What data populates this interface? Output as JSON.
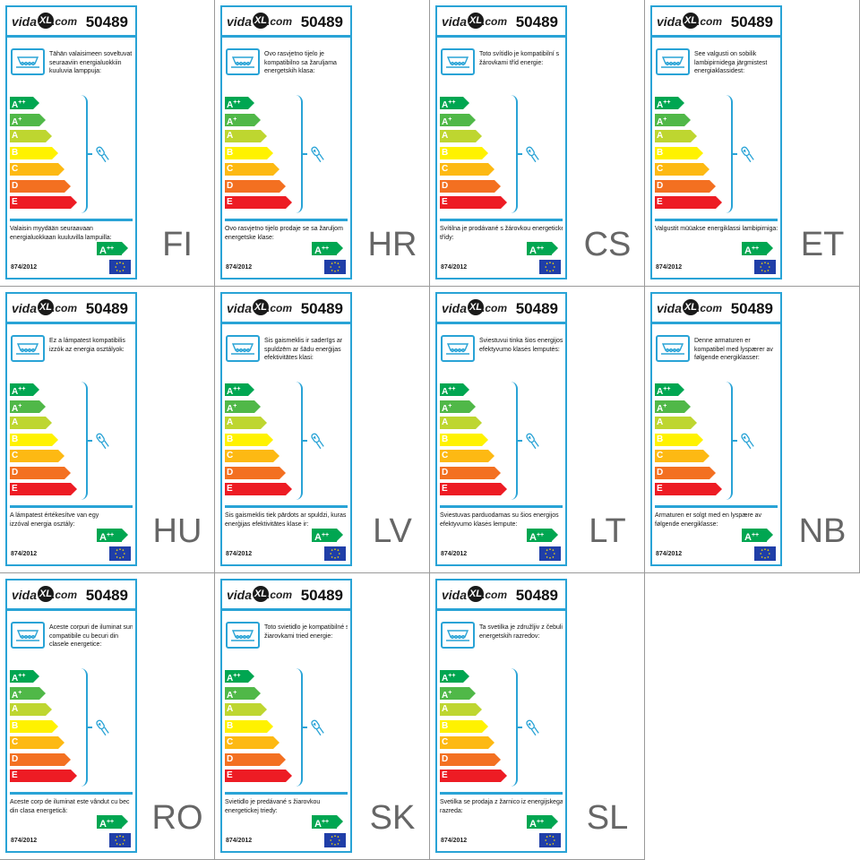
{
  "model": "50489",
  "logo": {
    "prefix": "vida",
    "mark": "XL",
    "suffix": ".com"
  },
  "regulation": "874/2012",
  "energy_classes": [
    {
      "letter": "A",
      "sup": "++",
      "color": "#00a651"
    },
    {
      "letter": "A",
      "sup": "+",
      "color": "#50b848"
    },
    {
      "letter": "A",
      "sup": "",
      "color": "#bed630"
    },
    {
      "letter": "B",
      "sup": "",
      "color": "#fff200"
    },
    {
      "letter": "C",
      "sup": "",
      "color": "#fdb913"
    },
    {
      "letter": "D",
      "sup": "",
      "color": "#f37021"
    },
    {
      "letter": "E",
      "sup": "",
      "color": "#ed1c24"
    }
  ],
  "sold_class": {
    "letter": "A",
    "sup": "++"
  },
  "labels": [
    {
      "code": "FI",
      "top": "Tähän valaisimeen soveltuvat\nseuraaviin energialuokkiin\nkuuluvia lamppuja:",
      "bottom": "Valaisin myydään seuraavaan\nenergialuokkaan kuuluvilla lampuilla:"
    },
    {
      "code": "HR",
      "top": "Ovo rasvjetno tijelo je\nkompatibilno sa žaruljama\nenergetskih klasa:",
      "bottom": "Ovo rasvjetno tijelo prodaje se sa žaruljom\nenergetske klase:"
    },
    {
      "code": "CS",
      "top": "Toto svítidlo je kompatibilní s\nžárovkami tříd energie:",
      "bottom": "Svítilna je prodávané s žárovkou energetické\ntřídy:"
    },
    {
      "code": "ET",
      "top": "See valgusti on sobilik\nlambipirnidega järgmistest\nenergiaklassidest:",
      "bottom": "Valgustit müüakse energiklassi lambipirniga:"
    },
    {
      "code": "HU",
      "top": "Ez a lámpatest kompatibilis\nizzók az energia osztályok:",
      "bottom": "A lámpatest értékesítve van egy\nizzóval energia osztály:"
    },
    {
      "code": "LV",
      "top": "Šis gaismeklis ir saderīgs ar\nspuldzēm ar šādu enerģijas\nefektivitātes klasi:",
      "bottom": "Šis gaismeklis tiek pārdots ar spuldzi, kuras\nenerģijas efektivitātes klase ir:"
    },
    {
      "code": "LT",
      "top": "Šviestuvui tinka šios energijos\nefektyvumo klasės lemputės:",
      "bottom": "Šviestuvas parduodamas su šios energijos\nefektyvumo klasės lempute:"
    },
    {
      "code": "NB",
      "top": "Denne armaturen er\nkompatibel med lyspærer av\nfølgende energiklasser:",
      "bottom": "Armaturen er solgt med en lyspære av\nfølgende energiklasse:"
    },
    {
      "code": "RO",
      "top": "Aceste corpuri de iluminat sunt\ncompatibile cu becuri din\nclasele energetice:",
      "bottom": "Aceste corp de iluminat este vândut cu bec\ndin clasa energetică:"
    },
    {
      "code": "SK",
      "top": "Toto svietidlo je kompatibilné s\nžiarovkami tried energie:",
      "bottom": "Svietidlo je predávané s žiarovkou\nenergetickej triedy:"
    },
    {
      "code": "SL",
      "top": "Ta svetilka je združljiv z čebulic\nenergetskih razredov:",
      "bottom": "Svetilka se prodaja z žarnico iz energijskega\nrazreda:"
    }
  ],
  "colors": {
    "accent": "#29a3d6",
    "eu_flag": "#1f3ea8",
    "eu_stars": "#ffdd00"
  },
  "icons": [
    "ceiling-lamp-icon",
    "light-bulb-icon",
    "eu-flag-icon"
  ]
}
